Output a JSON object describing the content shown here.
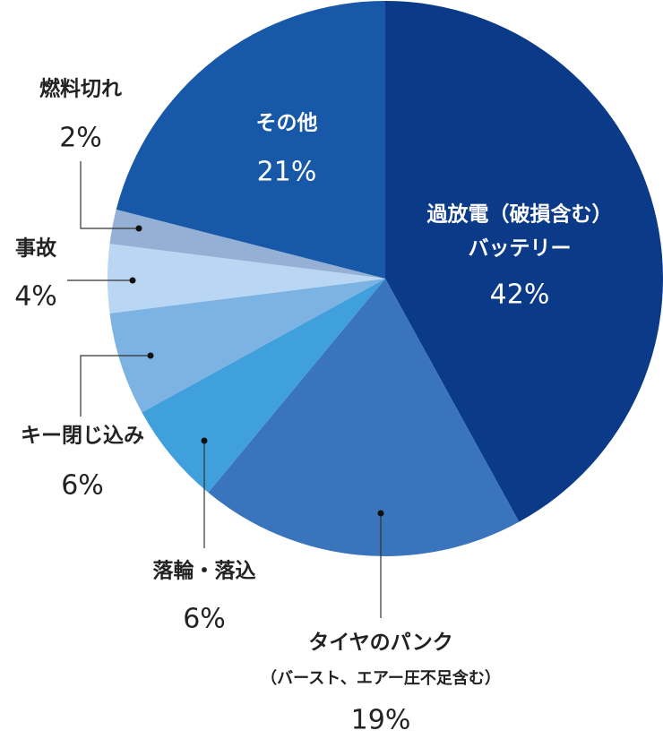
{
  "chart_data": {
    "type": "pie",
    "categories": [
      [
        "過放電（破損含む）",
        "バッテリー"
      ],
      [
        "タイヤのパンク",
        "（バースト、エアー圧不足含む）"
      ],
      [
        "落輪・落込"
      ],
      [
        "キー閉じ込み"
      ],
      [
        "事故"
      ],
      [
        "燃料切れ"
      ],
      [
        "その他"
      ]
    ],
    "values": [
      42,
      19,
      6,
      6,
      4,
      2,
      21
    ],
    "value_labels": [
      "42%",
      "19%",
      "6%",
      "6%",
      "4%",
      "2%",
      "21%"
    ],
    "colors": [
      "#0b3b88",
      "#3a74bd",
      "#40a0dc",
      "#7db3e3",
      "#b9d6f2",
      "#94b0d4",
      "#1858a8"
    ]
  }
}
